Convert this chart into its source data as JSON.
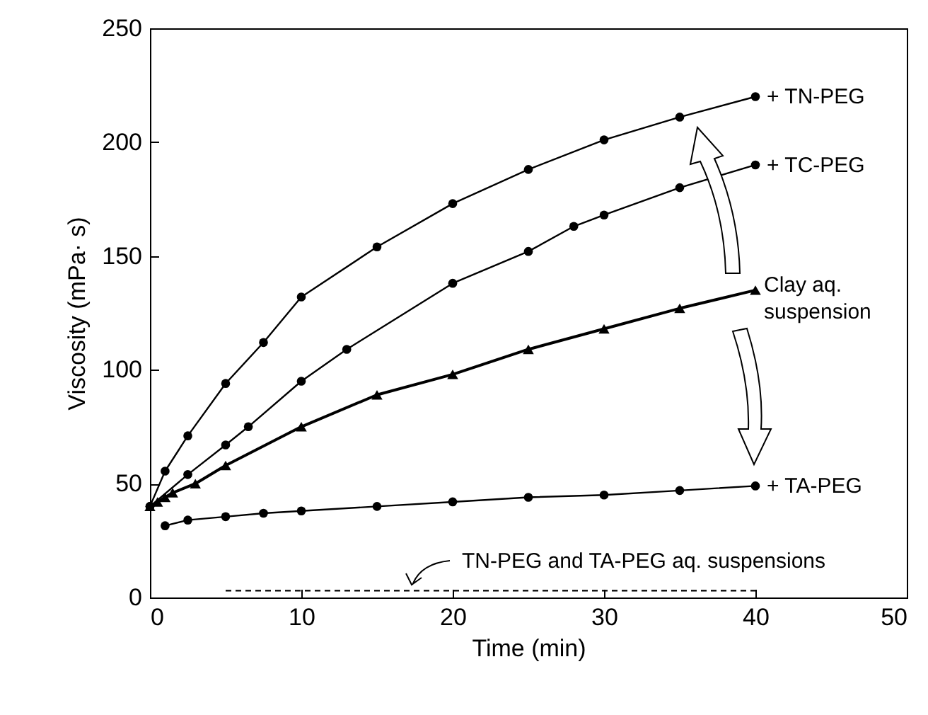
{
  "chart_data": {
    "type": "line",
    "xlabel": "Time (min)",
    "ylabel": "Viscosity (mPa· s)",
    "xlim": [
      0,
      50
    ],
    "xticks": [
      0,
      10,
      20,
      30,
      40,
      50
    ],
    "ylim": [
      0,
      250
    ],
    "yticks": [
      0,
      50,
      100,
      150,
      200,
      250
    ],
    "annotations": [
      "TN-PEG and TA-PEG aq. suspensions"
    ],
    "series": [
      {
        "name": "+ TN-PEG",
        "color": "#000000",
        "marker": "circle",
        "x": [
          0,
          1,
          2.5,
          5,
          7.5,
          10,
          15,
          20,
          25,
          30,
          35,
          40
        ],
        "values": [
          40,
          55.5,
          71,
          94,
          112,
          132,
          154,
          173,
          188,
          201,
          211,
          220
        ]
      },
      {
        "name": "+ TC-PEG",
        "color": "#000000",
        "marker": "circle",
        "x": [
          0,
          2.5,
          5,
          6.5,
          10,
          13,
          20,
          25,
          28,
          30,
          35,
          40
        ],
        "values": [
          40,
          54,
          67,
          75,
          95,
          109,
          138,
          152,
          163,
          168,
          180,
          190
        ]
      },
      {
        "name": "Clay aq. suspension",
        "color": "#000000",
        "marker": "triangle",
        "x": [
          0,
          0.5,
          1,
          1.5,
          3,
          5,
          10,
          15,
          20,
          25,
          30,
          35,
          40
        ],
        "values": [
          40,
          42,
          44,
          46,
          50,
          58,
          75,
          89,
          98,
          109,
          118,
          127,
          135
        ]
      },
      {
        "name": "+ TA-PEG",
        "color": "#000000",
        "marker": "circle",
        "x": [
          1,
          2.5,
          5,
          7.5,
          10,
          15,
          20,
          25,
          30,
          35,
          40
        ],
        "values": [
          31.5,
          34,
          35.5,
          37,
          38,
          40,
          42,
          44,
          45,
          47,
          49
        ]
      },
      {
        "color": "#000000",
        "marker": "none",
        "line_style": "dashed",
        "x": [
          5,
          10,
          20,
          30,
          40
        ],
        "values": [
          3,
          3,
          3,
          3,
          3
        ]
      }
    ]
  }
}
